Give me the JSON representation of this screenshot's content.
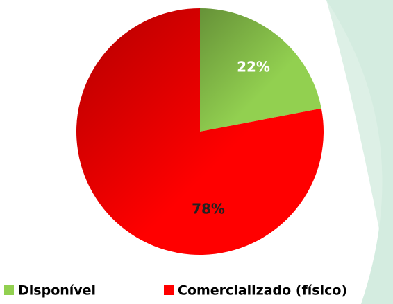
{
  "chart_data": {
    "type": "pie",
    "categories": [
      "Disponível",
      "Comercializado (físico)"
    ],
    "values": [
      22,
      78
    ],
    "value_labels": [
      "22%",
      "78%"
    ],
    "colors": [
      "#92d050",
      "#ff0000"
    ],
    "legend": "bottom"
  }
}
